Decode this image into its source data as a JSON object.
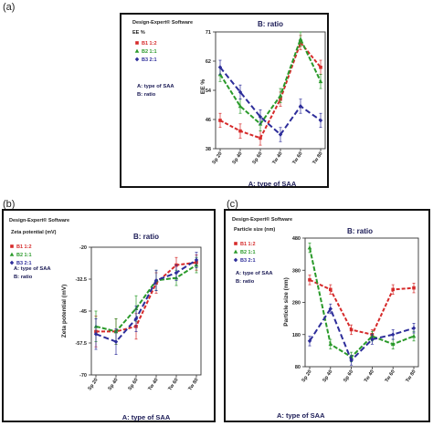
{
  "panels": [
    {
      "letter": "(a)",
      "software": "Design-Expert® Software",
      "response": "EE %",
      "title": "B: ratio",
      "notes": [
        "A: type of SAA",
        "B: ratio"
      ],
      "xlabel": "A: type of SAA",
      "ylabel": "EE %",
      "yticks": [
        "38",
        "46",
        "54",
        "62",
        "71"
      ]
    },
    {
      "letter": "(b)",
      "software": "Design-Expert® Software",
      "response": "Zeta potential (mV)",
      "title": "B: ratio",
      "notes": [
        "A: type of SAA",
        "B: ratio"
      ],
      "xlabel": "A: type of SAA",
      "ylabel": "Zeta potential (mV)",
      "yticks": [
        "-70",
        "-57.5",
        "-45",
        "-32.5",
        "-20"
      ]
    },
    {
      "letter": "(c)",
      "software": "Design-Expert® Software",
      "response": "Particle size (nm)",
      "title": "B: ratio",
      "notes": [
        "A: type of SAA",
        "B: ratio"
      ],
      "xlabel": "A: type of SAA",
      "ylabel": "Particle size (nm)",
      "yticks": [
        "80",
        "180",
        "280",
        "380",
        "480"
      ]
    }
  ],
  "series_style": {
    "colors": [
      "#d62a2a",
      "#2a9a2a",
      "#2d2d9a"
    ],
    "legend_colors": [
      "#d62a2a",
      "#2a9a2a",
      "#2d2d9a"
    ]
  },
  "chart_data": [
    {
      "type": "line",
      "categories": [
        "Sp 20",
        "Sp 40",
        "Sp 60",
        "Tw 40",
        "Tw 60",
        "Tw 80"
      ],
      "ylim": [
        38,
        71
      ],
      "series": [
        {
          "name": "B1 1:2",
          "values": [
            46,
            43,
            41,
            52,
            68,
            61
          ],
          "errors": [
            2,
            2,
            2,
            2,
            2,
            2
          ]
        },
        {
          "name": "B2 1:1",
          "values": [
            59,
            50,
            45,
            53,
            69,
            57
          ],
          "errors": [
            2,
            2,
            2,
            2,
            2,
            2
          ]
        },
        {
          "name": "B3 2:1",
          "values": [
            61,
            54,
            47,
            42,
            50,
            46
          ],
          "errors": [
            2,
            2,
            2,
            2,
            2,
            2
          ]
        }
      ]
    },
    {
      "type": "line",
      "categories": [
        "Sp 20",
        "Sp 40",
        "Sp 60",
        "Tw 40",
        "Tw 60",
        "Tw 80"
      ],
      "ylim": [
        -70,
        -20
      ],
      "series": [
        {
          "name": "B1 1:2",
          "values": [
            -53,
            -53,
            -51,
            -34,
            -27,
            -26
          ],
          "errors": [
            6,
            5,
            5,
            4,
            3,
            3
          ]
        },
        {
          "name": "B2 1:1",
          "values": [
            -51,
            -53,
            -44,
            -33,
            -32,
            -27
          ],
          "errors": [
            6,
            5,
            5,
            4,
            3,
            3
          ]
        },
        {
          "name": "B3 2:1",
          "values": [
            -54,
            -57,
            -48,
            -33,
            -30,
            -25
          ],
          "errors": [
            6,
            5,
            5,
            4,
            3,
            3
          ]
        }
      ]
    },
    {
      "type": "line",
      "categories": [
        "Sp 20",
        "Sp 40",
        "Sp 60",
        "Tw 40",
        "Tw 60",
        "Tw 80"
      ],
      "ylim": [
        80,
        480
      ],
      "series": [
        {
          "name": "B1 1:2",
          "values": [
            350,
            320,
            195,
            180,
            320,
            325
          ],
          "errors": [
            15,
            15,
            15,
            15,
            15,
            15
          ]
        },
        {
          "name": "B2 1:1",
          "values": [
            450,
            150,
            110,
            175,
            150,
            175
          ],
          "errors": [
            15,
            15,
            15,
            15,
            15,
            15
          ]
        },
        {
          "name": "B3 2:1",
          "values": [
            160,
            260,
            100,
            165,
            180,
            200
          ],
          "errors": [
            15,
            15,
            15,
            15,
            15,
            15
          ]
        }
      ]
    }
  ]
}
